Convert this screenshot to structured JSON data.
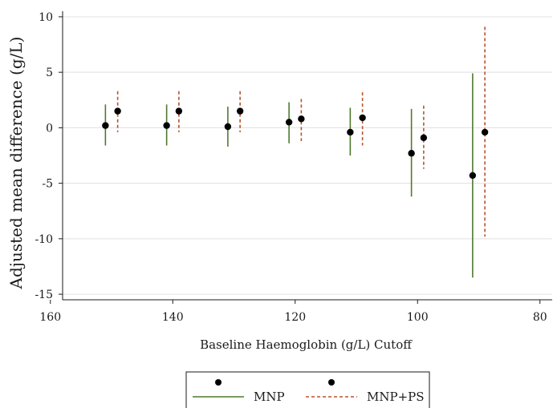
{
  "chart_data": {
    "type": "scatter",
    "xlabel": "Baseline Haemoglobin (g/L) Cutoff",
    "ylabel": "Adjusted mean difference (g/L)",
    "xlim": [
      158,
      78
    ],
    "ylim": [
      -15.5,
      10.5
    ],
    "x_reversed": true,
    "xticks": [
      160,
      140,
      120,
      100,
      80
    ],
    "yticks": [
      10,
      5,
      0,
      -5,
      -10,
      -15
    ],
    "y_gridlines": true,
    "legend_position": "bottom",
    "colors": {
      "MNP": "#4f7a2e",
      "MNP+PS": "#b5532f",
      "point": "#000000",
      "grid": "#e6e6e6"
    },
    "series": [
      {
        "name": "MNP",
        "line_style": "solid",
        "points": [
          {
            "cutoff": 150,
            "x": 151,
            "y": 0.2,
            "lo": -1.6,
            "hi": 2.1
          },
          {
            "cutoff": 140,
            "x": 141,
            "y": 0.2,
            "lo": -1.6,
            "hi": 2.1
          },
          {
            "cutoff": 130,
            "x": 131,
            "y": 0.1,
            "lo": -1.7,
            "hi": 1.9
          },
          {
            "cutoff": 120,
            "x": 121,
            "y": 0.5,
            "lo": -1.4,
            "hi": 2.3
          },
          {
            "cutoff": 110,
            "x": 111,
            "y": -0.4,
            "lo": -2.5,
            "hi": 1.8
          },
          {
            "cutoff": 100,
            "x": 101,
            "y": -2.3,
            "lo": -6.2,
            "hi": 1.7
          },
          {
            "cutoff": 90,
            "x": 91,
            "y": -4.3,
            "lo": -13.5,
            "hi": 4.9
          }
        ]
      },
      {
        "name": "MNP+PS",
        "line_style": "dashed",
        "points": [
          {
            "cutoff": 150,
            "x": 149,
            "y": 1.5,
            "lo": -0.4,
            "hi": 3.3
          },
          {
            "cutoff": 140,
            "x": 139,
            "y": 1.5,
            "lo": -0.4,
            "hi": 3.3
          },
          {
            "cutoff": 130,
            "x": 129,
            "y": 1.5,
            "lo": -0.4,
            "hi": 3.3
          },
          {
            "cutoff": 120,
            "x": 119,
            "y": 0.8,
            "lo": -1.2,
            "hi": 2.6
          },
          {
            "cutoff": 110,
            "x": 109,
            "y": 0.9,
            "lo": -1.6,
            "hi": 3.2
          },
          {
            "cutoff": 100,
            "x": 99,
            "y": -0.9,
            "lo": -3.7,
            "hi": 2.0
          },
          {
            "cutoff": 90,
            "x": 89,
            "y": -0.4,
            "lo": -9.8,
            "hi": 9.1
          }
        ]
      }
    ]
  }
}
